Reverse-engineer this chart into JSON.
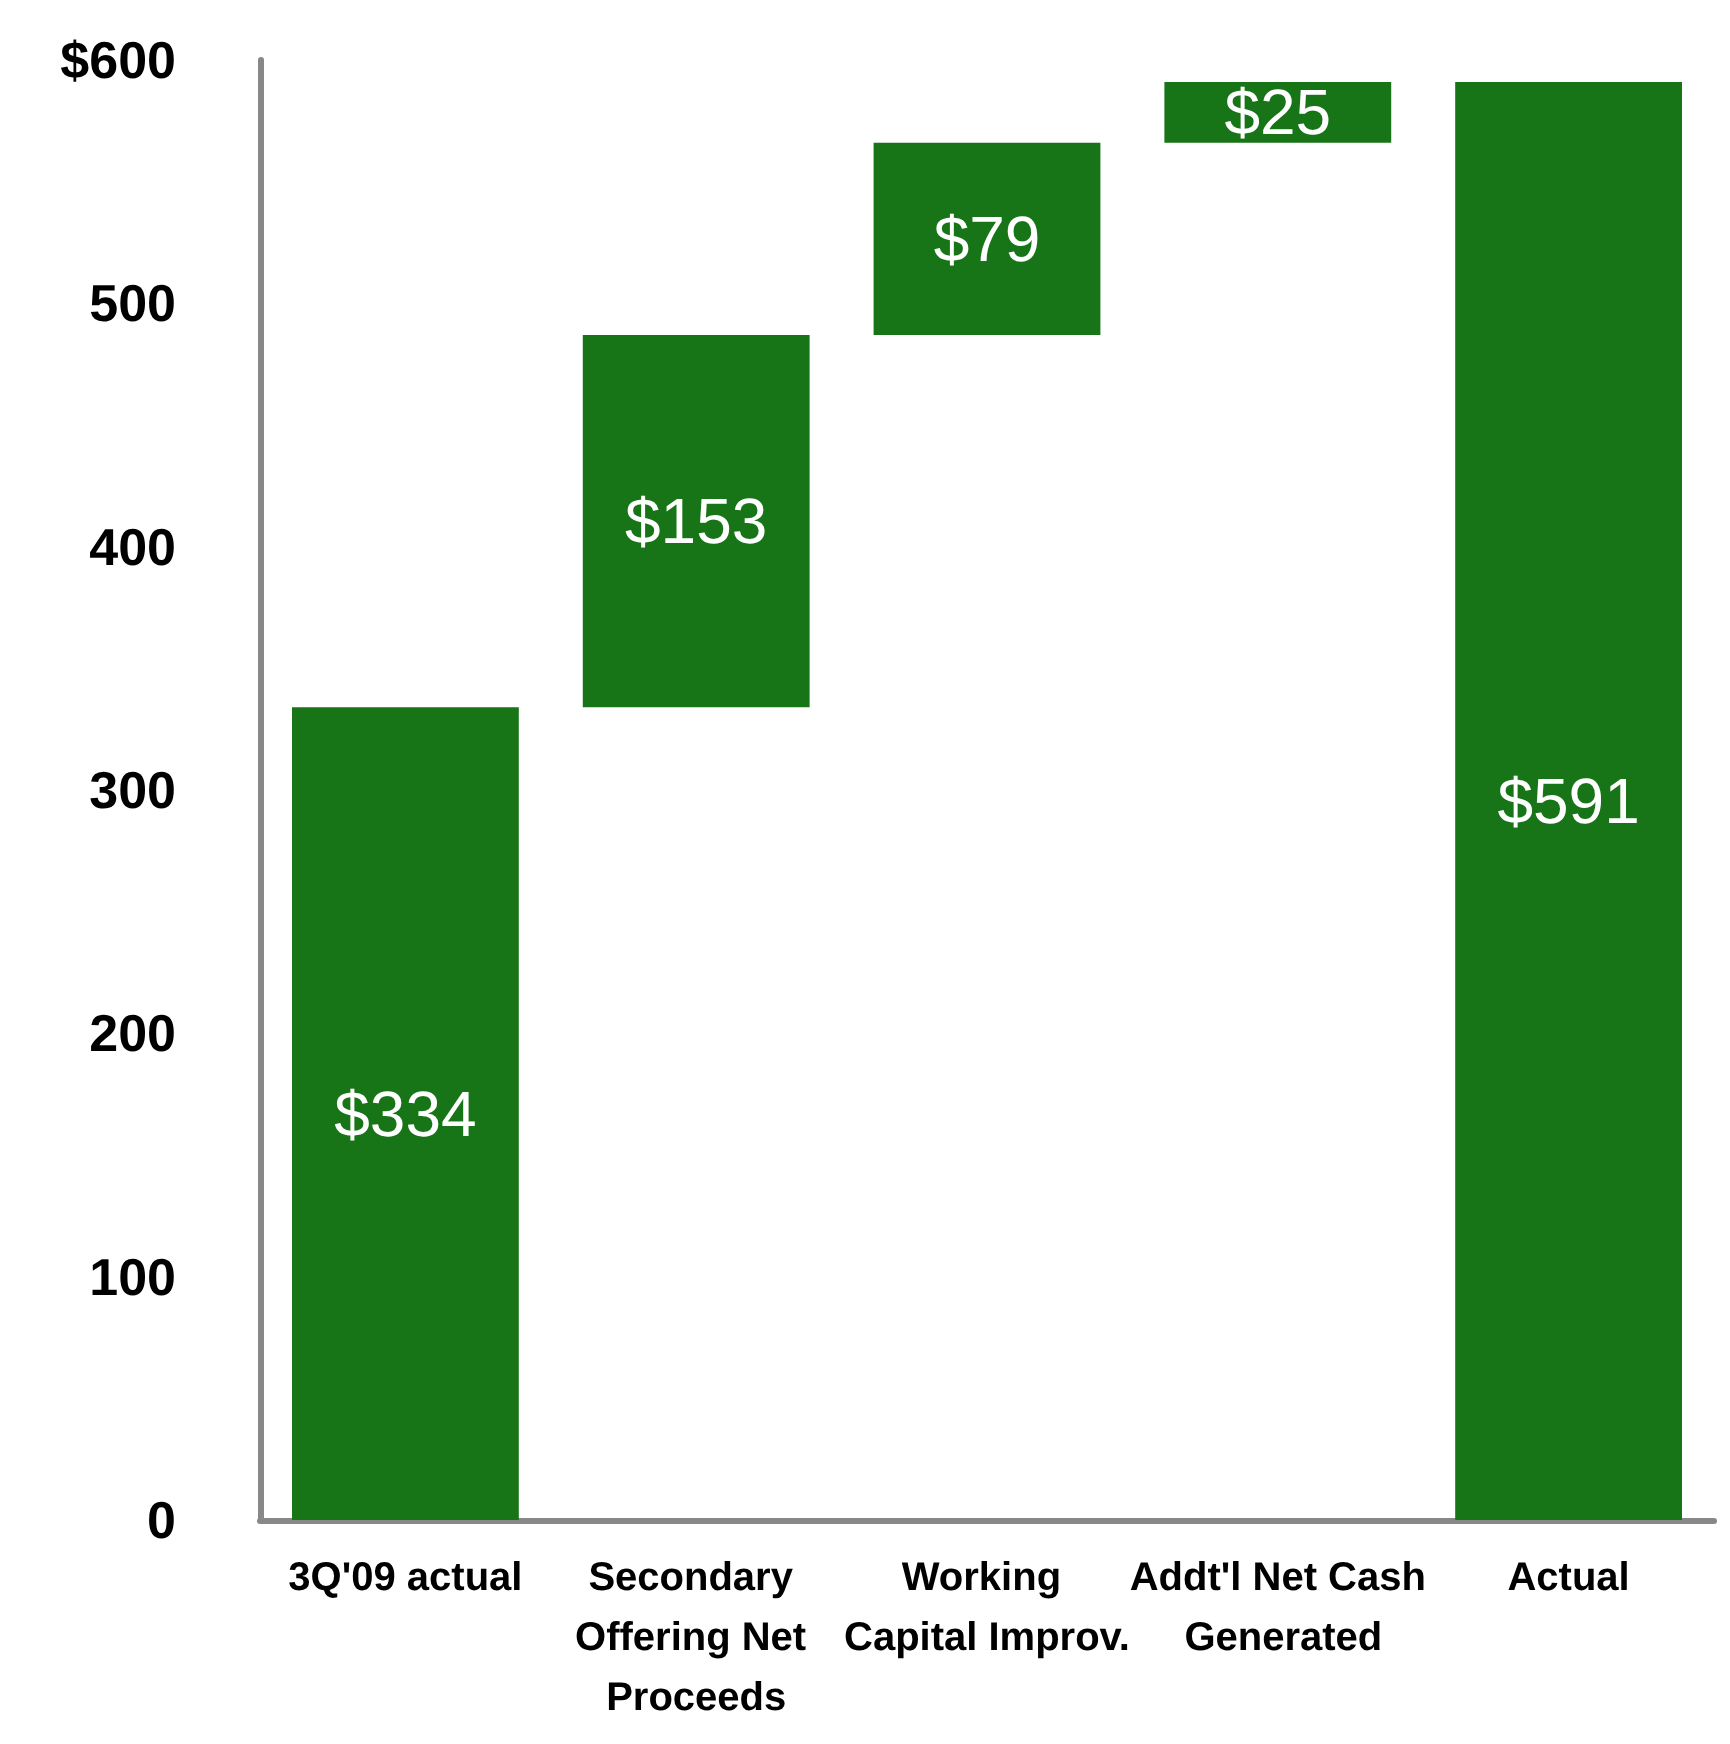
{
  "chart_data": {
    "type": "bar",
    "categories": [
      "3Q'09 actual",
      "Secondary Offering Net Proceeds",
      "Working Capital Improv.",
      "Addt'l Net Cash Generated",
      "Actual"
    ],
    "values": [
      334,
      153,
      79,
      25,
      591
    ],
    "base": [
      0,
      334,
      487,
      566,
      0
    ],
    "value_labels": [
      "$334",
      "$153",
      "$79",
      "$25",
      "$591"
    ],
    "color": "#177517",
    "ylim": [
      0,
      600
    ],
    "yticks": [
      0,
      100,
      200,
      300,
      400,
      500,
      {
        "value": 600,
        "label": "$600"
      }
    ],
    "grid": false
  }
}
